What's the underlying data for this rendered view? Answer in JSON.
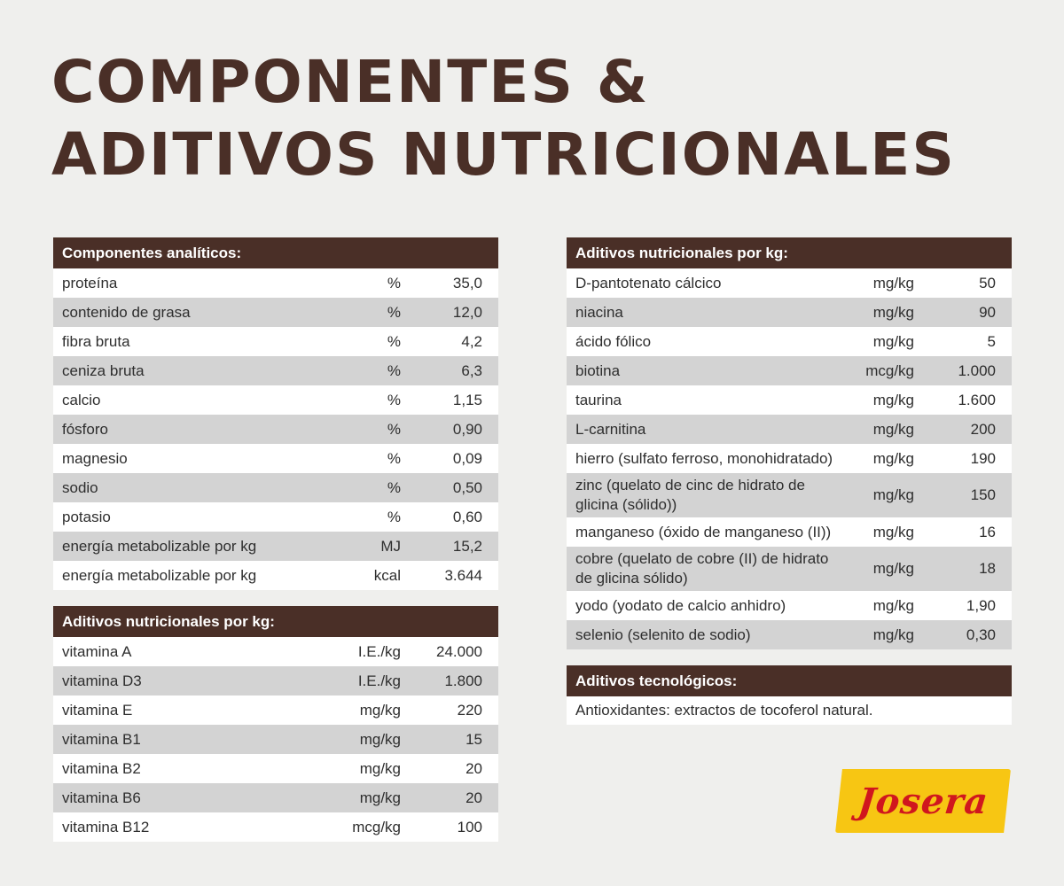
{
  "title": {
    "line1": "Componentes &",
    "line2": "Aditivos Nutricionales"
  },
  "analytic": {
    "header": "Componentes analíticos:",
    "rows": [
      {
        "name": "proteína",
        "unit": "%",
        "value": "35,0"
      },
      {
        "name": "contenido de grasa",
        "unit": "%",
        "value": "12,0"
      },
      {
        "name": "fibra bruta",
        "unit": "%",
        "value": "4,2"
      },
      {
        "name": "ceniza bruta",
        "unit": "%",
        "value": "6,3"
      },
      {
        "name": "calcio",
        "unit": "%",
        "value": "1,15"
      },
      {
        "name": "fósforo",
        "unit": "%",
        "value": "0,90"
      },
      {
        "name": "magnesio",
        "unit": "%",
        "value": "0,09"
      },
      {
        "name": "sodio",
        "unit": "%",
        "value": "0,50"
      },
      {
        "name": "potasio",
        "unit": "%",
        "value": "0,60"
      },
      {
        "name": "energía metabolizable por kg",
        "unit": "MJ",
        "value": "15,2"
      },
      {
        "name": "energía metabolizable por kg",
        "unit": "kcal",
        "value": "3.644"
      }
    ]
  },
  "vitamins": {
    "header": "Aditivos nutricionales por kg:",
    "rows": [
      {
        "name": "vitamina A",
        "unit": "I.E./kg",
        "value": "24.000"
      },
      {
        "name": "vitamina D3",
        "unit": "I.E./kg",
        "value": "1.800"
      },
      {
        "name": "vitamina E",
        "unit": "mg/kg",
        "value": "220"
      },
      {
        "name": "vitamina B1",
        "unit": "mg/kg",
        "value": "15"
      },
      {
        "name": "vitamina B2",
        "unit": "mg/kg",
        "value": "20"
      },
      {
        "name": "vitamina B6",
        "unit": "mg/kg",
        "value": "20"
      },
      {
        "name": "vitamina B12",
        "unit": "mcg/kg",
        "value": "100"
      }
    ]
  },
  "additives": {
    "header": "Aditivos nutricionales por kg:",
    "rows": [
      {
        "name": "D-pantotenato cálcico",
        "unit": "mg/kg",
        "value": "50"
      },
      {
        "name": "niacina",
        "unit": "mg/kg",
        "value": "90"
      },
      {
        "name": "ácido fólico",
        "unit": "mg/kg",
        "value": "5"
      },
      {
        "name": "biotina",
        "unit": "mcg/kg",
        "value": "1.000"
      },
      {
        "name": "taurina",
        "unit": "mg/kg",
        "value": "1.600"
      },
      {
        "name": "L-carnitina",
        "unit": "mg/kg",
        "value": "200"
      },
      {
        "name": "hierro (sulfato ferroso, monohidratado)",
        "unit": "mg/kg",
        "value": "190"
      },
      {
        "name": "zinc (quelato de cinc de hidrato de glicina (sólido))",
        "unit": "mg/kg",
        "value": "150"
      },
      {
        "name": "manganeso (óxido de manganeso (II))",
        "unit": "mg/kg",
        "value": "16"
      },
      {
        "name": "cobre (quelato de cobre (II) de hidrato de glicina sólido)",
        "unit": "mg/kg",
        "value": "18"
      },
      {
        "name": "yodo (yodato de calcio anhidro)",
        "unit": "mg/kg",
        "value": "1,90"
      },
      {
        "name": "selenio (selenito de sodio)",
        "unit": "mg/kg",
        "value": "0,30"
      }
    ]
  },
  "tech": {
    "header": "Aditivos tecnológicos:",
    "text": "Antioxidantes: extractos de tocoferol natural."
  },
  "brand": {
    "logo_text": "Josera",
    "logo_bg": "#f7c613",
    "logo_fg": "#d0171e",
    "accent": "#4a2f27"
  }
}
